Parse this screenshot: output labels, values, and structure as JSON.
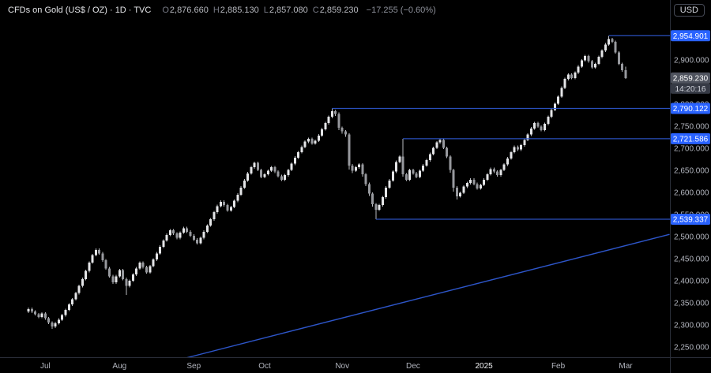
{
  "header": {
    "title": "CFDs on Gold (US$ / OZ) · 1D · TVC",
    "ohlc": {
      "open_label": "O",
      "open": "2,876.660",
      "high_label": "H",
      "high": "2,885.130",
      "low_label": "L",
      "low": "2,857.080",
      "close_label": "C",
      "close": "2,859.230",
      "change": "−17.255 (−0.60%)"
    },
    "currency_button": "USD"
  },
  "colors": {
    "background": "#000000",
    "axis_text": "#b2b5be",
    "axis_text_bright": "#f2f3f5",
    "separator": "#2a2e39",
    "candle_up": "#e4e5e7",
    "candle_down": "#97999e",
    "candle_wick": "#babcc1",
    "drawing_line": "#2d55c8",
    "badge_bg": "#2962ff",
    "badge_text": "#ffffff",
    "last_price_bg": "#4f535e",
    "last_price_text": "#ffffff",
    "countdown_bg": "#363a45",
    "countdown_text": "#d1d4dc"
  },
  "price_axis": {
    "ticks": [
      {
        "value": 2900,
        "label": "2,900.000"
      },
      {
        "value": 2800,
        "label": "2,800.000"
      },
      {
        "value": 2750,
        "label": "2,750.000"
      },
      {
        "value": 2700,
        "label": "2,700.000"
      },
      {
        "value": 2650,
        "label": "2,650.000"
      },
      {
        "value": 2600,
        "label": "2,600.000"
      },
      {
        "value": 2550,
        "label": "2,550.000"
      },
      {
        "value": 2500,
        "label": "2,500.000"
      },
      {
        "value": 2450,
        "label": "2,450.000"
      },
      {
        "value": 2400,
        "label": "2,400.000"
      },
      {
        "value": 2350,
        "label": "2,350.000"
      },
      {
        "value": 2300,
        "label": "2,300.000"
      },
      {
        "value": 2250,
        "label": "2,250.000"
      }
    ]
  },
  "chart_data": {
    "type": "candlestick",
    "title": "CFDs on Gold (US$ / OZ) · 1D · TVC",
    "symbol": "Gold CFD (US$/OZ)",
    "interval": "1D",
    "exchange": "TVC",
    "ylim": [
      2227,
      3030
    ],
    "grid": false,
    "last_price": 2859.23,
    "last_price_label": "2,859.230",
    "countdown": "14:20:16",
    "month_ticks": [
      {
        "label": "Jul",
        "index": 5
      },
      {
        "label": "Aug",
        "index": 27
      },
      {
        "label": "Sep",
        "index": 49
      },
      {
        "label": "Oct",
        "index": 70
      },
      {
        "label": "Nov",
        "index": 93
      },
      {
        "label": "Dec",
        "index": 114
      },
      {
        "label": "2025",
        "index": 135,
        "bright": true
      },
      {
        "label": "Feb",
        "index": 157
      },
      {
        "label": "Mar",
        "index": 177
      }
    ],
    "horizontal_rays": [
      {
        "price": 2954.901,
        "label": "2,954.901",
        "from_index": 172
      },
      {
        "price": 2790.122,
        "label": "2,790.122",
        "from_index": 90
      },
      {
        "price": 2721.586,
        "label": "2,721.586",
        "from_index": 111
      },
      {
        "price": 2539.337,
        "label": "2,539.337",
        "from_index": 103
      }
    ],
    "trendline": {
      "from_index": 41,
      "from_price": 2214,
      "to_index": 190,
      "to_price": 2505
    },
    "candles": [
      [
        2330,
        2339,
        2327,
        2336
      ],
      [
        2336,
        2339,
        2327,
        2330
      ],
      [
        2330,
        2333,
        2321,
        2324
      ],
      [
        2324,
        2327,
        2315,
        2318
      ],
      [
        2318,
        2329,
        2315,
        2326
      ],
      [
        2326,
        2329,
        2312,
        2315
      ],
      [
        2315,
        2318,
        2302,
        2305
      ],
      [
        2305,
        2308,
        2291,
        2296
      ],
      [
        2296,
        2307,
        2293,
        2304
      ],
      [
        2304,
        2315,
        2301,
        2312
      ],
      [
        2312,
        2325,
        2309,
        2322
      ],
      [
        2322,
        2337,
        2319,
        2334
      ],
      [
        2334,
        2349,
        2331,
        2346
      ],
      [
        2346,
        2361,
        2343,
        2358
      ],
      [
        2358,
        2375,
        2355,
        2372
      ],
      [
        2372,
        2391,
        2369,
        2388
      ],
      [
        2388,
        2407,
        2385,
        2404
      ],
      [
        2404,
        2425,
        2401,
        2422
      ],
      [
        2422,
        2444,
        2419,
        2441
      ],
      [
        2441,
        2461,
        2438,
        2458
      ],
      [
        2458,
        2473,
        2455,
        2470
      ],
      [
        2470,
        2473,
        2459,
        2462
      ],
      [
        2462,
        2465,
        2443,
        2446
      ],
      [
        2446,
        2449,
        2425,
        2428
      ],
      [
        2428,
        2431,
        2407,
        2410
      ],
      [
        2410,
        2413,
        2393,
        2396
      ],
      [
        2396,
        2413,
        2393,
        2410
      ],
      [
        2410,
        2427,
        2407,
        2424
      ],
      [
        2424,
        2427,
        2401,
        2404
      ],
      [
        2404,
        2407,
        2368,
        2388
      ],
      [
        2388,
        2403,
        2385,
        2400
      ],
      [
        2400,
        2417,
        2397,
        2414
      ],
      [
        2414,
        2431,
        2411,
        2428
      ],
      [
        2428,
        2444,
        2425,
        2441
      ],
      [
        2441,
        2444,
        2428,
        2431
      ],
      [
        2431,
        2434,
        2416,
        2419
      ],
      [
        2419,
        2436,
        2416,
        2433
      ],
      [
        2433,
        2451,
        2430,
        2448
      ],
      [
        2448,
        2465,
        2445,
        2462
      ],
      [
        2462,
        2480,
        2459,
        2477
      ],
      [
        2477,
        2494,
        2474,
        2491
      ],
      [
        2491,
        2507,
        2488,
        2504
      ],
      [
        2504,
        2517,
        2501,
        2514
      ],
      [
        2514,
        2517,
        2504,
        2507
      ],
      [
        2507,
        2510,
        2494,
        2497
      ],
      [
        2497,
        2512,
        2494,
        2509
      ],
      [
        2509,
        2522,
        2506,
        2519
      ],
      [
        2519,
        2522,
        2508,
        2511
      ],
      [
        2511,
        2514,
        2499,
        2502
      ],
      [
        2502,
        2505,
        2490,
        2493
      ],
      [
        2493,
        2496,
        2482,
        2485
      ],
      [
        2485,
        2500,
        2482,
        2497
      ],
      [
        2497,
        2514,
        2494,
        2511
      ],
      [
        2511,
        2528,
        2508,
        2525
      ],
      [
        2525,
        2542,
        2522,
        2539
      ],
      [
        2539,
        2558,
        2536,
        2555
      ],
      [
        2555,
        2572,
        2552,
        2569
      ],
      [
        2569,
        2582,
        2566,
        2579
      ],
      [
        2579,
        2582,
        2568,
        2571
      ],
      [
        2571,
        2574,
        2556,
        2559
      ],
      [
        2559,
        2570,
        2556,
        2567
      ],
      [
        2567,
        2584,
        2564,
        2581
      ],
      [
        2581,
        2598,
        2578,
        2595
      ],
      [
        2595,
        2614,
        2592,
        2611
      ],
      [
        2611,
        2630,
        2608,
        2627
      ],
      [
        2627,
        2646,
        2624,
        2643
      ],
      [
        2643,
        2660,
        2640,
        2657
      ],
      [
        2657,
        2670,
        2654,
        2667
      ],
      [
        2667,
        2670,
        2648,
        2651
      ],
      [
        2651,
        2654,
        2632,
        2635
      ],
      [
        2635,
        2644,
        2632,
        2641
      ],
      [
        2641,
        2652,
        2638,
        2649
      ],
      [
        2649,
        2660,
        2646,
        2657
      ],
      [
        2657,
        2660,
        2644,
        2647
      ],
      [
        2647,
        2650,
        2634,
        2637
      ],
      [
        2637,
        2640,
        2626,
        2629
      ],
      [
        2629,
        2642,
        2626,
        2639
      ],
      [
        2639,
        2654,
        2636,
        2651
      ],
      [
        2651,
        2668,
        2648,
        2665
      ],
      [
        2665,
        2682,
        2662,
        2679
      ],
      [
        2679,
        2694,
        2676,
        2691
      ],
      [
        2691,
        2706,
        2688,
        2703
      ],
      [
        2703,
        2718,
        2700,
        2715
      ],
      [
        2715,
        2724,
        2712,
        2721
      ],
      [
        2721,
        2724,
        2708,
        2711
      ],
      [
        2711,
        2720,
        2708,
        2717
      ],
      [
        2717,
        2732,
        2714,
        2729
      ],
      [
        2729,
        2746,
        2726,
        2743
      ],
      [
        2743,
        2760,
        2740,
        2757
      ],
      [
        2757,
        2774,
        2754,
        2771
      ],
      [
        2771,
        2790.1,
        2768,
        2784
      ],
      [
        2784,
        2787,
        2773,
        2778
      ],
      [
        2778,
        2781,
        2741,
        2746
      ],
      [
        2746,
        2749,
        2733,
        2738
      ],
      [
        2738,
        2741,
        2726,
        2731
      ],
      [
        2731,
        2734,
        2652,
        2661
      ],
      [
        2661,
        2664,
        2644,
        2649
      ],
      [
        2649,
        2660,
        2646,
        2657
      ],
      [
        2657,
        2666,
        2654,
        2663
      ],
      [
        2663,
        2666,
        2636,
        2641
      ],
      [
        2641,
        2644,
        2614,
        2619
      ],
      [
        2619,
        2622,
        2592,
        2597
      ],
      [
        2597,
        2600,
        2568,
        2573
      ],
      [
        2573,
        2576,
        2539.3,
        2561
      ],
      [
        2561,
        2574,
        2558,
        2571
      ],
      [
        2571,
        2592,
        2568,
        2589
      ],
      [
        2589,
        2614,
        2586,
        2611
      ],
      [
        2611,
        2630,
        2608,
        2627
      ],
      [
        2627,
        2650,
        2624,
        2647
      ],
      [
        2647,
        2672,
        2644,
        2669
      ],
      [
        2669,
        2684,
        2666,
        2681
      ],
      [
        2681,
        2721.6,
        2636,
        2641
      ],
      [
        2641,
        2644,
        2626,
        2629
      ],
      [
        2629,
        2654,
        2626,
        2651
      ],
      [
        2651,
        2654,
        2640,
        2643
      ],
      [
        2643,
        2646,
        2632,
        2635
      ],
      [
        2635,
        2652,
        2632,
        2649
      ],
      [
        2649,
        2664,
        2646,
        2661
      ],
      [
        2661,
        2676,
        2658,
        2673
      ],
      [
        2673,
        2690,
        2670,
        2687
      ],
      [
        2687,
        2704,
        2684,
        2701
      ],
      [
        2701,
        2716,
        2698,
        2713
      ],
      [
        2713,
        2721.6,
        2710,
        2719
      ],
      [
        2719,
        2722,
        2698,
        2701
      ],
      [
        2701,
        2704,
        2678,
        2681
      ],
      [
        2681,
        2684,
        2645,
        2651
      ],
      [
        2651,
        2654,
        2602,
        2611
      ],
      [
        2611,
        2614,
        2584,
        2591
      ],
      [
        2591,
        2602,
        2588,
        2599
      ],
      [
        2599,
        2616,
        2596,
        2613
      ],
      [
        2613,
        2624,
        2610,
        2621
      ],
      [
        2621,
        2632,
        2618,
        2629
      ],
      [
        2629,
        2632,
        2616,
        2619
      ],
      [
        2619,
        2622,
        2606,
        2609
      ],
      [
        2609,
        2620,
        2606,
        2617
      ],
      [
        2617,
        2632,
        2614,
        2629
      ],
      [
        2629,
        2644,
        2626,
        2641
      ],
      [
        2641,
        2656,
        2638,
        2653
      ],
      [
        2653,
        2656,
        2644,
        2647
      ],
      [
        2647,
        2650,
        2636,
        2639
      ],
      [
        2639,
        2654,
        2636,
        2651
      ],
      [
        2651,
        2666,
        2648,
        2663
      ],
      [
        2663,
        2680,
        2660,
        2677
      ],
      [
        2677,
        2694,
        2674,
        2691
      ],
      [
        2691,
        2706,
        2688,
        2703
      ],
      [
        2703,
        2706,
        2694,
        2697
      ],
      [
        2697,
        2710,
        2694,
        2707
      ],
      [
        2707,
        2722,
        2704,
        2719
      ],
      [
        2719,
        2734,
        2716,
        2731
      ],
      [
        2731,
        2748,
        2728,
        2745
      ],
      [
        2745,
        2760,
        2742,
        2757
      ],
      [
        2757,
        2760,
        2746,
        2749
      ],
      [
        2749,
        2752,
        2738,
        2741
      ],
      [
        2741,
        2758,
        2738,
        2755
      ],
      [
        2755,
        2774,
        2752,
        2771
      ],
      [
        2771,
        2790,
        2768,
        2787
      ],
      [
        2787,
        2804,
        2784,
        2801
      ],
      [
        2801,
        2820,
        2798,
        2817
      ],
      [
        2817,
        2840,
        2814,
        2837
      ],
      [
        2837,
        2860,
        2834,
        2857
      ],
      [
        2857,
        2870,
        2854,
        2867
      ],
      [
        2867,
        2870,
        2856,
        2859
      ],
      [
        2859,
        2874,
        2856,
        2871
      ],
      [
        2871,
        2888,
        2868,
        2885
      ],
      [
        2885,
        2902,
        2882,
        2899
      ],
      [
        2899,
        2912,
        2896,
        2909
      ],
      [
        2909,
        2912,
        2894,
        2897
      ],
      [
        2897,
        2900,
        2880,
        2883
      ],
      [
        2883,
        2894,
        2880,
        2891
      ],
      [
        2891,
        2910,
        2888,
        2907
      ],
      [
        2907,
        2924,
        2904,
        2921
      ],
      [
        2921,
        2938,
        2918,
        2935
      ],
      [
        2935,
        2954.9,
        2932,
        2947
      ],
      [
        2947,
        2950,
        2938,
        2941
      ],
      [
        2941,
        2944,
        2914,
        2917
      ],
      [
        2917,
        2920,
        2888,
        2891
      ],
      [
        2891,
        2894,
        2873,
        2876.5
      ],
      [
        2876.66,
        2885.13,
        2857.08,
        2859.23
      ]
    ]
  }
}
